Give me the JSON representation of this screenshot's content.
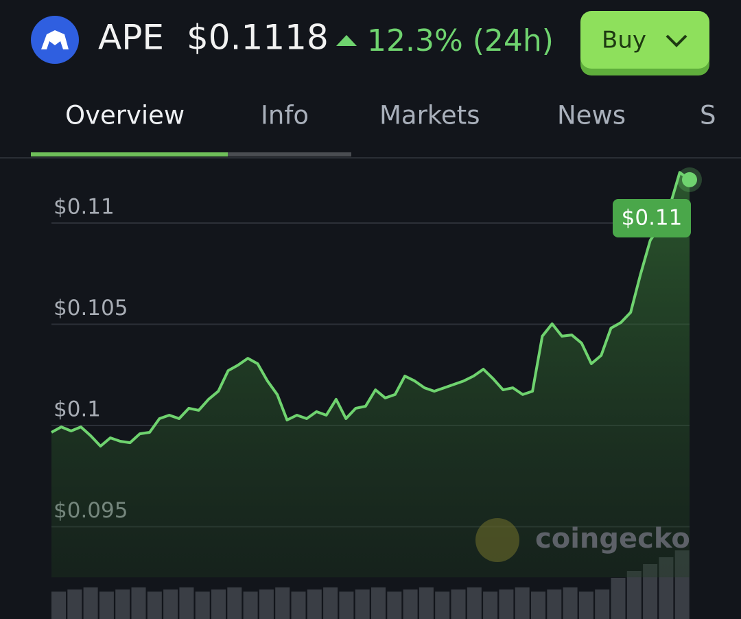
{
  "header": {
    "symbol": "APE",
    "price": "$0.1118",
    "change": "12.3% (24h)",
    "button": "Buy"
  },
  "tabs": [
    "Overview",
    "Info",
    "Markets",
    "News",
    "S"
  ],
  "watermark": "coingecko",
  "chart_data": {
    "type": "line",
    "color": "#6fd36f",
    "last_label": "$0.11",
    "values": [
      0.09966,
      0.09993,
      0.09973,
      0.09993,
      0.09949,
      0.09898,
      0.09939,
      0.09922,
      0.09915,
      0.09959,
      0.09966,
      0.10034,
      0.10051,
      0.10034,
      0.10085,
      0.10075,
      0.10129,
      0.10169,
      0.10271,
      0.10298,
      0.10332,
      0.10305,
      0.1022,
      0.10153,
      0.10027,
      0.10051,
      0.10034,
      0.10068,
      0.10051,
      0.10129,
      0.10034,
      0.10085,
      0.10095,
      0.10176,
      0.10136,
      0.10153,
      0.10244,
      0.1022,
      0.10186,
      0.10169,
      0.10186,
      0.10203,
      0.1022,
      0.10244,
      0.10278,
      0.10231,
      0.10176,
      0.10186,
      0.10153,
      0.10169,
      0.10441,
      0.10502,
      0.10441,
      0.10447,
      0.10407,
      0.10305,
      0.10346,
      0.10481,
      0.10508,
      0.10559,
      0.10746,
      0.10915,
      0.10983,
      0.11085,
      0.1125,
      0.11214
    ],
    "ylim": [
      0.0925,
      0.1125
    ],
    "yticks": [
      {
        "value": 0.095,
        "label": "$0.095"
      },
      {
        "value": 0.1,
        "label": "$0.1"
      },
      {
        "value": 0.105,
        "label": "$0.105"
      },
      {
        "value": 0.11,
        "label": "$0.11"
      }
    ],
    "grid": true
  }
}
